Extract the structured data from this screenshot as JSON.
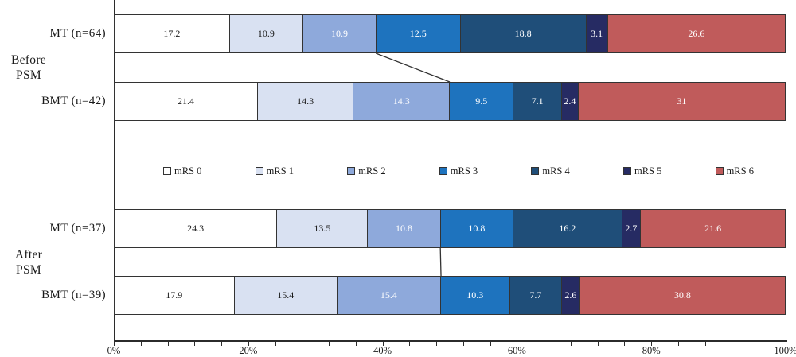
{
  "colors": {
    "segment_border": "#333333",
    "axis": "#2b2b2b",
    "text": "#1a1a1a"
  },
  "chart_data": {
    "type": "bar",
    "orientation": "horizontal",
    "stacked": true,
    "unit": "percent",
    "title": "",
    "xlabel": "",
    "ylabel": "",
    "xlim": [
      0,
      100
    ],
    "grid": false,
    "legend_position": "middle-center",
    "legend": [
      {
        "label": "mRS 0",
        "color": "#ffffff",
        "text_color": "#1a1a1a"
      },
      {
        "label": "mRS 1",
        "color": "#d9e1f2",
        "text_color": "#1a1a1a"
      },
      {
        "label": "mRS 2",
        "color": "#8ea9db",
        "text_color": "#ffffff"
      },
      {
        "label": "mRS 3",
        "color": "#1e73be",
        "text_color": "#ffffff"
      },
      {
        "label": "mRS 4",
        "color": "#1f4e79",
        "text_color": "#ffffff"
      },
      {
        "label": "mRS 5",
        "color": "#262b63",
        "text_color": "#ffffff"
      },
      {
        "label": "mRS 6",
        "color": "#c05b5b",
        "text_color": "#ffffff"
      }
    ],
    "groups": [
      {
        "lines": [
          "Before",
          "PSM"
        ]
      },
      {
        "lines": [
          "After",
          "PSM"
        ]
      }
    ],
    "rows": [
      {
        "group": "Before PSM",
        "label": "MT (n=64)",
        "values": [
          17.2,
          10.9,
          10.9,
          12.5,
          18.8,
          3.1,
          26.6
        ],
        "labels": [
          "17.2",
          "10.9",
          "10.9",
          "12.5",
          "18.8",
          "3.1",
          "26.6"
        ]
      },
      {
        "group": "Before PSM",
        "label": "BMT (n=42)",
        "values": [
          21.4,
          14.3,
          14.3,
          9.5,
          7.1,
          2.4,
          31
        ],
        "labels": [
          "21.4",
          "14.3",
          "14.3",
          "9.5",
          "7.1",
          "2.4",
          "31"
        ]
      },
      {
        "group": "After PSM",
        "label": "MT (n=37)",
        "values": [
          24.3,
          13.5,
          10.8,
          10.8,
          16.2,
          2.7,
          21.6
        ],
        "labels": [
          "24.3",
          "13.5",
          "10.8",
          "10.8",
          "16.2",
          "2.7",
          "21.6"
        ]
      },
      {
        "group": "After PSM",
        "label": "BMT (n=39)",
        "values": [
          17.9,
          15.4,
          15.4,
          10.3,
          7.7,
          2.6,
          30.8
        ],
        "labels": [
          "17.9",
          "15.4",
          "15.4",
          "10.3",
          "7.7",
          "2.6",
          "30.8"
        ]
      }
    ],
    "connectors": [
      {
        "from_row": 0,
        "to_row": 1,
        "from_pct": 39.0,
        "to_pct": 50.0
      },
      {
        "from_row": 2,
        "to_row": 3,
        "from_pct": 48.6,
        "to_pct": 48.7
      }
    ],
    "axis": {
      "tick_labels": [
        "0%",
        "20%",
        "40%",
        "60%",
        "80%",
        "100%"
      ],
      "tick_values": [
        0,
        20,
        40,
        60,
        80,
        100
      ],
      "minor_tick_step": 4
    }
  }
}
